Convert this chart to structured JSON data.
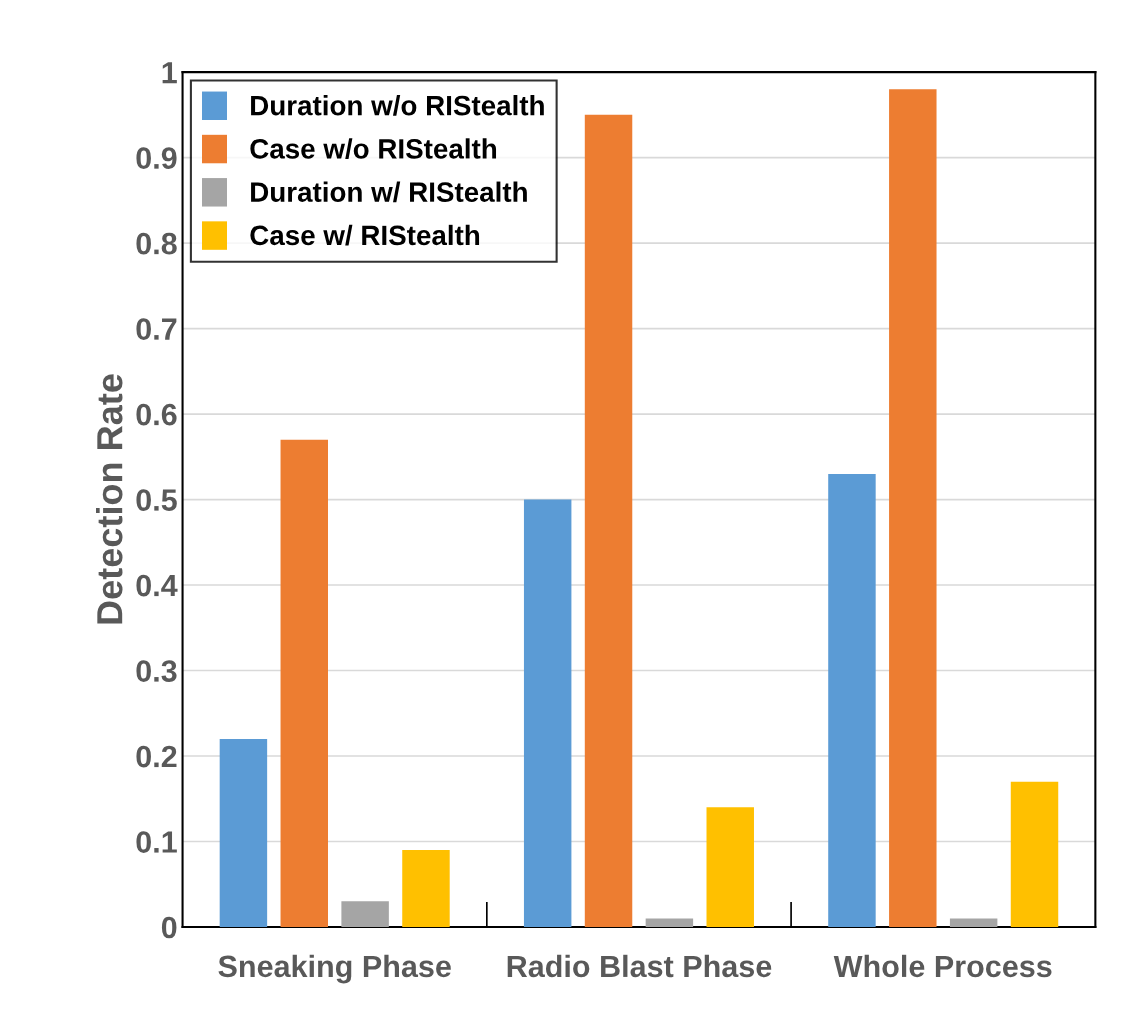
{
  "chart_data": {
    "type": "bar",
    "ylabel": "Detection Rate",
    "categories": [
      "Sneaking Phase",
      "Radio Blast Phase",
      "Whole Process"
    ],
    "series": [
      {
        "name": "Duration w/o RIStealth",
        "color": "#5b9bd5",
        "values": [
          0.22,
          0.5,
          0.53
        ]
      },
      {
        "name": "Case w/o RIStealth",
        "color": "#ed7d31",
        "values": [
          0.57,
          0.95,
          0.98
        ]
      },
      {
        "name": "Duration w/ RIStealth",
        "color": "#a5a5a5",
        "values": [
          0.03,
          0.01,
          0.01
        ]
      },
      {
        "name": "Case w/ RIStealth",
        "color": "#ffc000",
        "values": [
          0.09,
          0.14,
          0.17
        ]
      }
    ],
    "ylim": [
      0,
      1
    ],
    "yticks": [
      0,
      0.1,
      0.2,
      0.3,
      0.4,
      0.5,
      0.6,
      0.7,
      0.8,
      0.9,
      1
    ],
    "grid": "y",
    "legend": "top left"
  }
}
